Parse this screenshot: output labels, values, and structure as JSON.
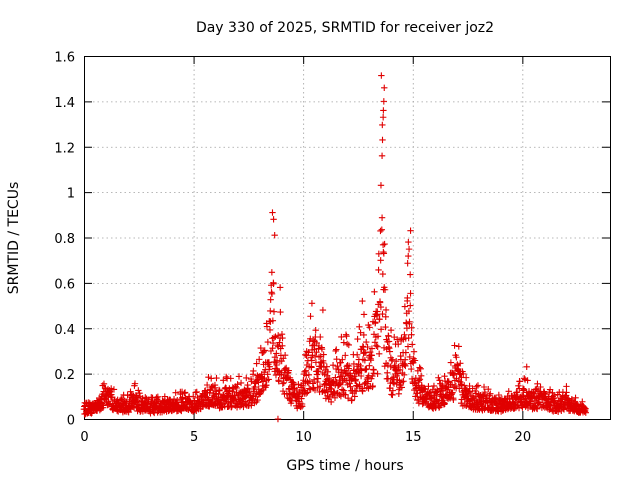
{
  "chart_data": {
    "type": "scatter",
    "title": "Day 330 of 2025, SRMTID for receiver joz2",
    "xlabel": "GPS time / hours",
    "ylabel": "SRMTID / TECUs",
    "xlim": [
      0,
      24
    ],
    "ylim": [
      0,
      1.6
    ],
    "xticks": [
      0,
      5,
      10,
      15,
      20
    ],
    "xtick_labels": [
      "0",
      "5",
      "10",
      "15",
      "20"
    ],
    "yticks": [
      0,
      0.2,
      0.4,
      0.6,
      0.8,
      1,
      1.2,
      1.4,
      1.6
    ],
    "ytick_labels": [
      "0",
      "0.2",
      "0.4",
      "0.6",
      "0.8",
      "1",
      "1.2",
      "1.4",
      "1.6"
    ],
    "grid": true,
    "marker": "+",
    "color": "#e00000",
    "series": [
      {
        "name": "joz2",
        "envelope": {
          "x": [
            0.0,
            0.4,
            0.8,
            1.0,
            1.5,
            2.0,
            2.3,
            2.6,
            3.0,
            3.5,
            4.0,
            4.5,
            5.0,
            5.5,
            5.8,
            6.2,
            6.6,
            7.0,
            7.4,
            7.8,
            8.0,
            8.2,
            8.4,
            8.5,
            8.6,
            8.7,
            8.8,
            9.0,
            9.2,
            9.4,
            9.6,
            9.8,
            10.0,
            10.2,
            10.4,
            10.6,
            10.8,
            11.0,
            11.3,
            11.6,
            11.9,
            12.2,
            12.5,
            12.8,
            13.0,
            13.2,
            13.4,
            13.5,
            13.6,
            13.7,
            13.8,
            14.0,
            14.2,
            14.4,
            14.6,
            14.8,
            15.0,
            15.2,
            15.5,
            15.8,
            16.2,
            16.6,
            17.0,
            17.3,
            17.6,
            18.0,
            18.5,
            19.0,
            19.5,
            20.0,
            20.5,
            21.0,
            21.5,
            22.0,
            22.5,
            22.9
          ],
          "y": [
            0.06,
            0.07,
            0.1,
            0.15,
            0.09,
            0.08,
            0.12,
            0.08,
            0.07,
            0.08,
            0.09,
            0.1,
            0.08,
            0.12,
            0.15,
            0.13,
            0.15,
            0.14,
            0.15,
            0.16,
            0.25,
            0.35,
            0.42,
            0.55,
            0.72,
            0.5,
            0.38,
            0.4,
            0.28,
            0.18,
            0.16,
            0.12,
            0.16,
            0.32,
            0.38,
            0.3,
            0.34,
            0.24,
            0.2,
            0.24,
            0.3,
            0.22,
            0.3,
            0.36,
            0.3,
            0.4,
            0.55,
            0.9,
            1.25,
            0.6,
            0.45,
            0.3,
            0.28,
            0.32,
            0.45,
            0.62,
            0.38,
            0.2,
            0.14,
            0.12,
            0.14,
            0.18,
            0.26,
            0.16,
            0.12,
            0.11,
            0.1,
            0.09,
            0.1,
            0.14,
            0.12,
            0.13,
            0.08,
            0.11,
            0.07,
            0.05
          ]
        },
        "peaks": [
          {
            "x": 8.6,
            "y": 0.91
          },
          {
            "x": 8.65,
            "y": 0.88
          },
          {
            "x": 8.7,
            "y": 0.81
          },
          {
            "x": 8.95,
            "y": 0.58
          },
          {
            "x": 10.4,
            "y": 0.51
          },
          {
            "x": 10.9,
            "y": 0.48
          },
          {
            "x": 12.7,
            "y": 0.52
          },
          {
            "x": 13.55,
            "y": 1.03
          },
          {
            "x": 13.6,
            "y": 1.16
          },
          {
            "x": 13.62,
            "y": 1.23
          },
          {
            "x": 13.65,
            "y": 1.33
          },
          {
            "x": 13.66,
            "y": 1.36
          },
          {
            "x": 13.68,
            "y": 1.4
          },
          {
            "x": 13.7,
            "y": 1.46
          },
          {
            "x": 14.8,
            "y": 0.78
          },
          {
            "x": 14.9,
            "y": 0.83
          },
          {
            "x": 17.1,
            "y": 0.32
          },
          {
            "x": 20.2,
            "y": 0.23
          }
        ],
        "outliers": [
          {
            "x": 8.85,
            "y": 0.0
          }
        ]
      }
    ]
  }
}
